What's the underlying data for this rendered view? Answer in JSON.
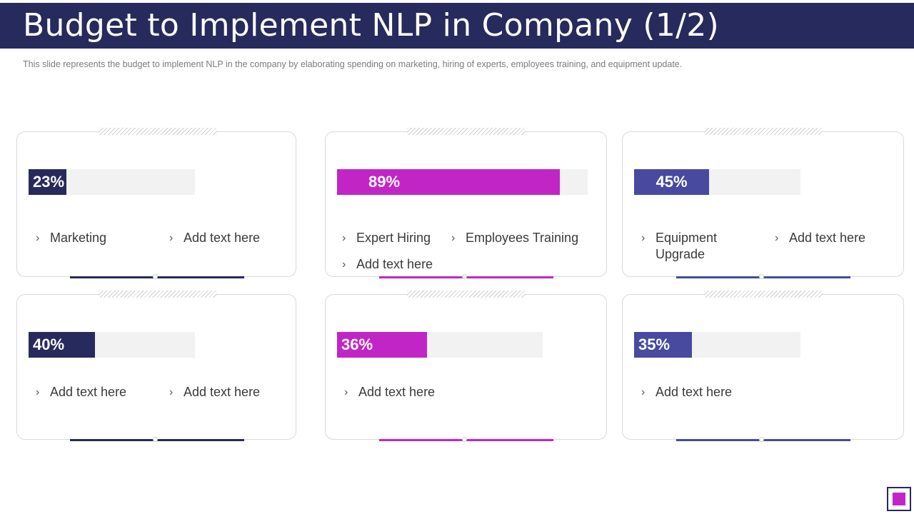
{
  "title": "Budget to Implement NLP in Company (1/2)",
  "subtitle": "This slide represents the budget to implement NLP in the company by elaborating spending on marketing, hiring of experts, employees training, and equipment update.",
  "colors": {
    "navy": "#272a5c",
    "magenta": "#c225c6",
    "indigo": "#474a9f"
  },
  "cards": [
    {
      "percent": "23%",
      "items": [
        "Marketing",
        "Add text here"
      ]
    },
    {
      "percent": "89%",
      "items": [
        "Expert Hiring",
        "Employees Training",
        "Add text here"
      ]
    },
    {
      "percent": "45%",
      "items": [
        "Equipment Upgrade",
        "Add text here"
      ]
    },
    {
      "percent": "40%",
      "items": [
        "Add text here",
        "Add text here"
      ]
    },
    {
      "percent": "36%",
      "items": [
        "Add text here"
      ]
    },
    {
      "percent": "35%",
      "items": [
        "Add text here"
      ]
    }
  ],
  "icons": {
    "bullet": "chevron-right-icon"
  }
}
